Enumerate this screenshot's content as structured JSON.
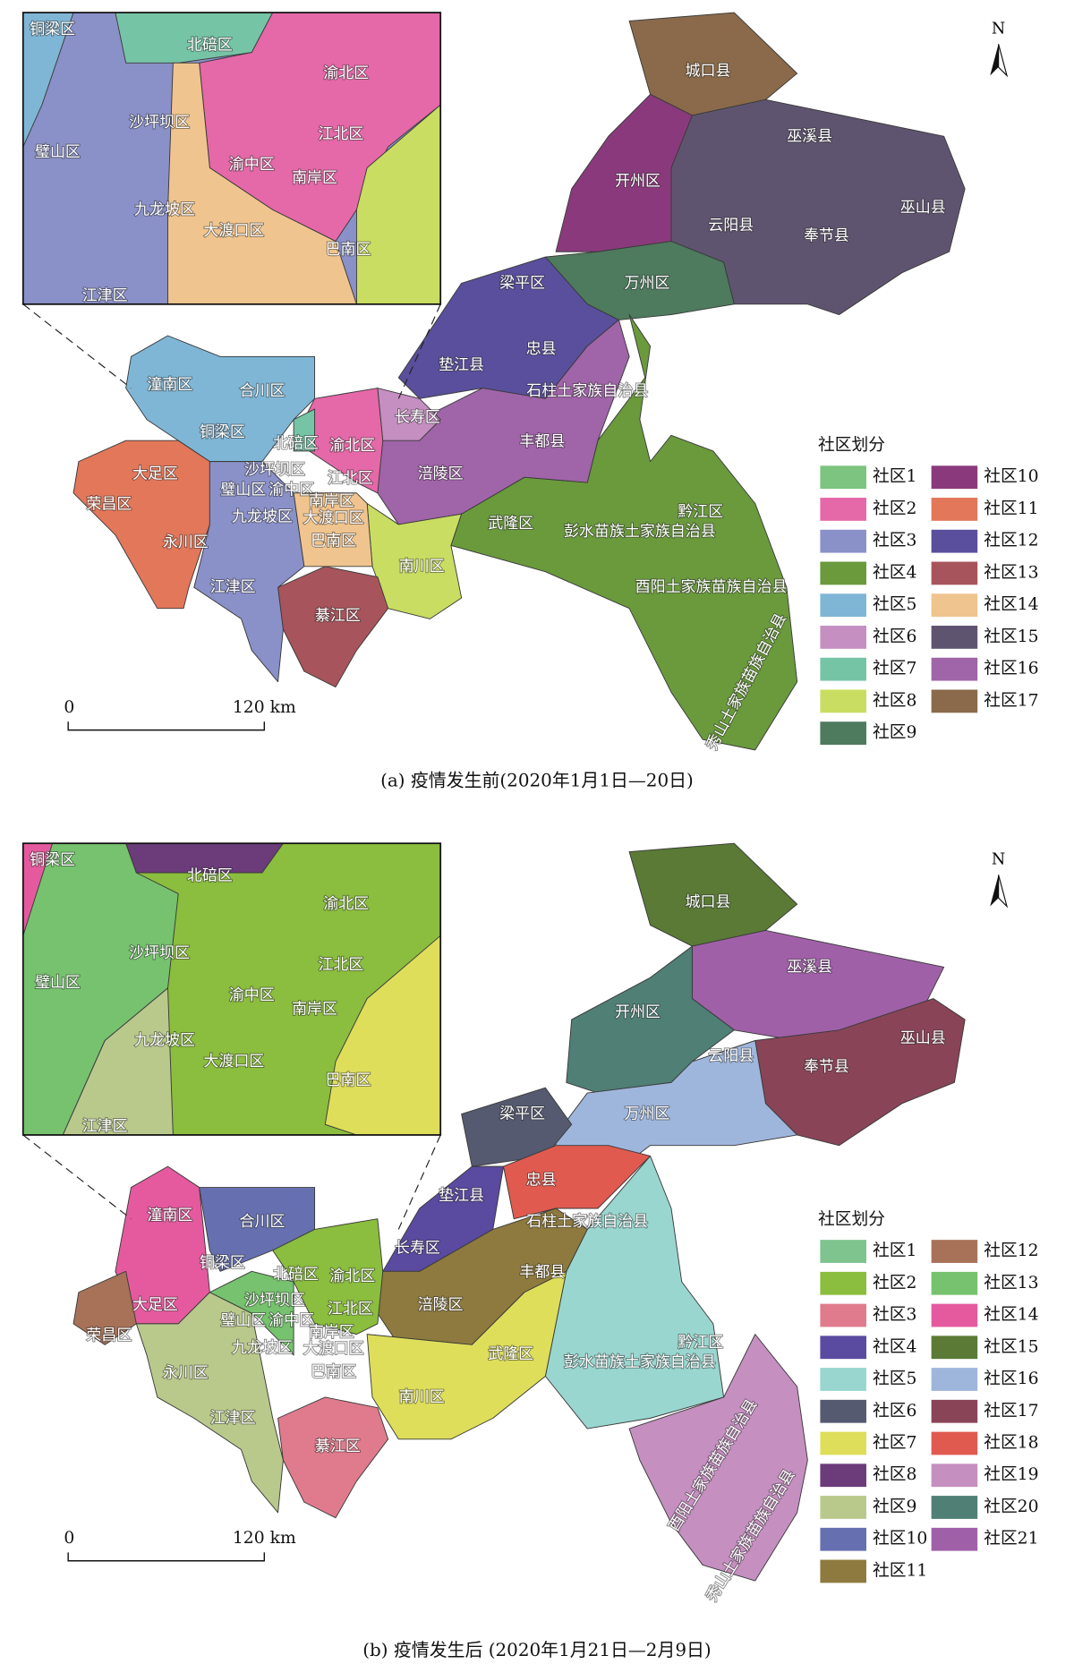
{
  "panels": [
    {
      "caption": "(a) 疫情发生前(2020年1月1日—20日)",
      "north": "N",
      "scale_labels": [
        "0",
        "120 km"
      ],
      "legend_title": "社区划分",
      "legend": [
        {
          "label": "社区1",
          "color": "#7cc47f"
        },
        {
          "label": "社区2",
          "color": "#e568a8"
        },
        {
          "label": "社区3",
          "color": "#8a90c8"
        },
        {
          "label": "社区4",
          "color": "#6a9a3c"
        },
        {
          "label": "社区5",
          "color": "#7fb6d6"
        },
        {
          "label": "社区6",
          "color": "#c58fc2"
        },
        {
          "label": "社区7",
          "color": "#76c4a6"
        },
        {
          "label": "社区8",
          "color": "#c9dd62"
        },
        {
          "label": "社区9",
          "color": "#4e7a5e"
        },
        {
          "label": "社区10",
          "color": "#8a3a7c"
        },
        {
          "label": "社区11",
          "color": "#e2775a"
        },
        {
          "label": "社区12",
          "color": "#5a4f9c"
        },
        {
          "label": "社区13",
          "color": "#a8545c"
        },
        {
          "label": "社区14",
          "color": "#f0c48e"
        },
        {
          "label": "社区15",
          "color": "#5f5470"
        },
        {
          "label": "社区16",
          "color": "#a064a8"
        },
        {
          "label": "社区17",
          "color": "#8a6a4a"
        }
      ],
      "map_labels": [
        "城口县",
        "巫溪县",
        "开州区",
        "云阳县",
        "奉节县",
        "巫山县",
        "万州区",
        "梁平区",
        "忠县",
        "垫江县",
        "石柱土家族自治县",
        "长寿区",
        "丰都县",
        "涪陵区",
        "武隆区",
        "彭水苗族土家族自治县",
        "黔江区",
        "酉阳土家族苗族自治县",
        "秀山土家族苗族自治县",
        "潼南区",
        "合川区",
        "铜梁区",
        "北碚区",
        "渝北区",
        "沙坪坝区",
        "江北区",
        "大足区",
        "荣昌区",
        "璧山区",
        "渝中区",
        "南岸区",
        "九龙坡区",
        "大渡口区",
        "永川区",
        "巴南区",
        "南川区",
        "江津区",
        "綦江区"
      ],
      "inset_labels": [
        "铜梁区",
        "北碚区",
        "渝北区",
        "沙坪坝区",
        "璧山区",
        "江北区",
        "渝中区",
        "南岸区",
        "九龙坡区",
        "大渡口区",
        "巴南区",
        "江津区"
      ]
    },
    {
      "caption": "(b) 疫情发生后 (2020年1月21日—2月9日)",
      "north": "N",
      "scale_labels": [
        "0",
        "120 km"
      ],
      "legend_title": "社区划分",
      "legend": [
        {
          "label": "社区1",
          "color": "#7fc38e"
        },
        {
          "label": "社区2",
          "color": "#8bbd3e"
        },
        {
          "label": "社区3",
          "color": "#e07b8d"
        },
        {
          "label": "社区4",
          "color": "#5a4aa0"
        },
        {
          "label": "社区5",
          "color": "#99d6cf"
        },
        {
          "label": "社区6",
          "color": "#555a70"
        },
        {
          "label": "社区7",
          "color": "#dede5a"
        },
        {
          "label": "社区8",
          "color": "#6b3b7a"
        },
        {
          "label": "社区9",
          "color": "#b9c98c"
        },
        {
          "label": "社区10",
          "color": "#6670b0"
        },
        {
          "label": "社区11",
          "color": "#8e7a3e"
        },
        {
          "label": "社区12",
          "color": "#a87258"
        },
        {
          "label": "社区13",
          "color": "#76c26e"
        },
        {
          "label": "社区14",
          "color": "#e55a9e"
        },
        {
          "label": "社区15",
          "color": "#5a7a35"
        },
        {
          "label": "社区16",
          "color": "#9fb6dc"
        },
        {
          "label": "社区17",
          "color": "#8a4458"
        },
        {
          "label": "社区18",
          "color": "#e05a50"
        },
        {
          "label": "社区19",
          "color": "#c58fc0"
        },
        {
          "label": "社区20",
          "color": "#4f7f75"
        },
        {
          "label": "社区21",
          "color": "#a060a8"
        }
      ],
      "map_labels": [
        "城口县",
        "巫溪县",
        "开州区",
        "云阳县",
        "奉节县",
        "巫山县",
        "万州区",
        "梁平区",
        "忠县",
        "垫江县",
        "石柱土家族自治县",
        "长寿区",
        "丰都县",
        "涪陵区",
        "武隆区",
        "彭水苗族土家族自治县",
        "黔江区",
        "酉阳土家族苗族自治县",
        "秀山土家族苗族自治县",
        "潼南区",
        "合川区",
        "铜梁区",
        "北碚区",
        "渝北区",
        "沙坪坝区",
        "江北区",
        "大足区",
        "荣昌区",
        "璧山区",
        "渝中区",
        "南岸区",
        "九龙坡区",
        "大渡口区",
        "永川区",
        "巴南区",
        "南川区",
        "江津区",
        "綦江区"
      ],
      "inset_labels": [
        "铜梁区",
        "北碚区",
        "渝北区",
        "沙坪坝区",
        "璧山区",
        "江北区",
        "渝中区",
        "南岸区",
        "九龙坡区",
        "大渡口区",
        "巴南区",
        "江津区"
      ]
    }
  ]
}
